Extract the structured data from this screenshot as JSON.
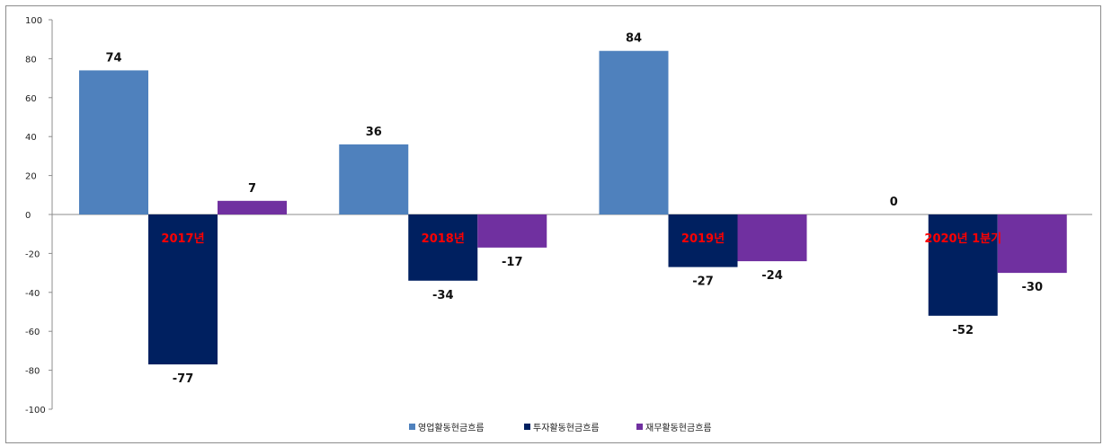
{
  "chart_data": {
    "type": "bar",
    "categories": [
      "2017년",
      "2018년",
      "2019년",
      "2020년 1분기"
    ],
    "series": [
      {
        "name": "영업활동현금흐름",
        "values": [
          74,
          36,
          84,
          0
        ],
        "color": "#4f81bd"
      },
      {
        "name": "투자활동현금흐름",
        "values": [
          -77,
          -34,
          -27,
          -52
        ],
        "color": "#002060"
      },
      {
        "name": "재무활동현금흐름",
        "values": [
          7,
          -17,
          -24,
          -30
        ],
        "color": "#7030a0"
      }
    ],
    "ylim": [
      -100,
      100
    ],
    "yticks": [
      100,
      80,
      60,
      40,
      20,
      0,
      -20,
      -40,
      -60,
      -80,
      -100
    ],
    "category_label_color": "#ff0000",
    "legend_position": "bottom",
    "grid": false
  }
}
